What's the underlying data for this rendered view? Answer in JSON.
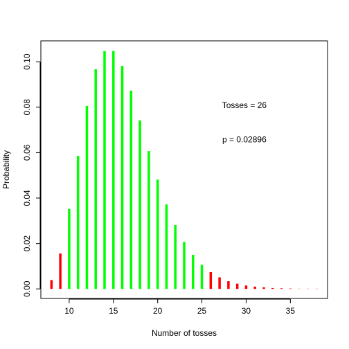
{
  "chart_data": {
    "type": "bar",
    "title": "",
    "xlabel": "Number of tosses",
    "ylabel": "Probability",
    "xlim": [
      6.8,
      39.2
    ],
    "ylim": [
      -0.0042,
      0.1092
    ],
    "xticks": [
      10,
      15,
      20,
      25,
      30,
      35
    ],
    "yticks": [
      0.0,
      0.02,
      0.04,
      0.06,
      0.08,
      0.1
    ],
    "ytick_labels": [
      "0.00",
      "0.02",
      "0.04",
      "0.06",
      "0.08",
      "0.10"
    ],
    "grid": false,
    "annotations": [
      {
        "label": "Tosses = 26",
        "x": 29.8,
        "y": 0.0796
      },
      {
        "label": "p =  0.02896",
        "x": 29.8,
        "y": 0.0645
      }
    ],
    "colors": {
      "tail": "#ff0000",
      "center": "#00ff00"
    },
    "x": [
      8,
      9,
      10,
      11,
      12,
      13,
      14,
      15,
      16,
      17,
      18,
      19,
      20,
      21,
      22,
      23,
      24,
      25,
      26,
      27,
      28,
      29,
      30,
      31,
      32,
      33,
      34,
      35,
      36,
      37,
      38
    ],
    "values": [
      0.0039,
      0.0156,
      0.0352,
      0.0586,
      0.0806,
      0.0967,
      0.1047,
      0.1047,
      0.0982,
      0.0873,
      0.0742,
      0.0607,
      0.0481,
      0.0372,
      0.0281,
      0.0207,
      0.015,
      0.0106,
      0.0074,
      0.0051,
      0.0034,
      0.0023,
      0.0015,
      0.001,
      0.0007,
      0.0004,
      0.0003,
      0.0002,
      0.0001,
      0.0001,
      0.0001
    ],
    "region": [
      "tail",
      "tail",
      "center",
      "center",
      "center",
      "center",
      "center",
      "center",
      "center",
      "center",
      "center",
      "center",
      "center",
      "center",
      "center",
      "center",
      "center",
      "center",
      "tail",
      "tail",
      "tail",
      "tail",
      "tail",
      "tail",
      "tail",
      "tail",
      "tail",
      "tail",
      "tail",
      "tail",
      "tail"
    ]
  }
}
